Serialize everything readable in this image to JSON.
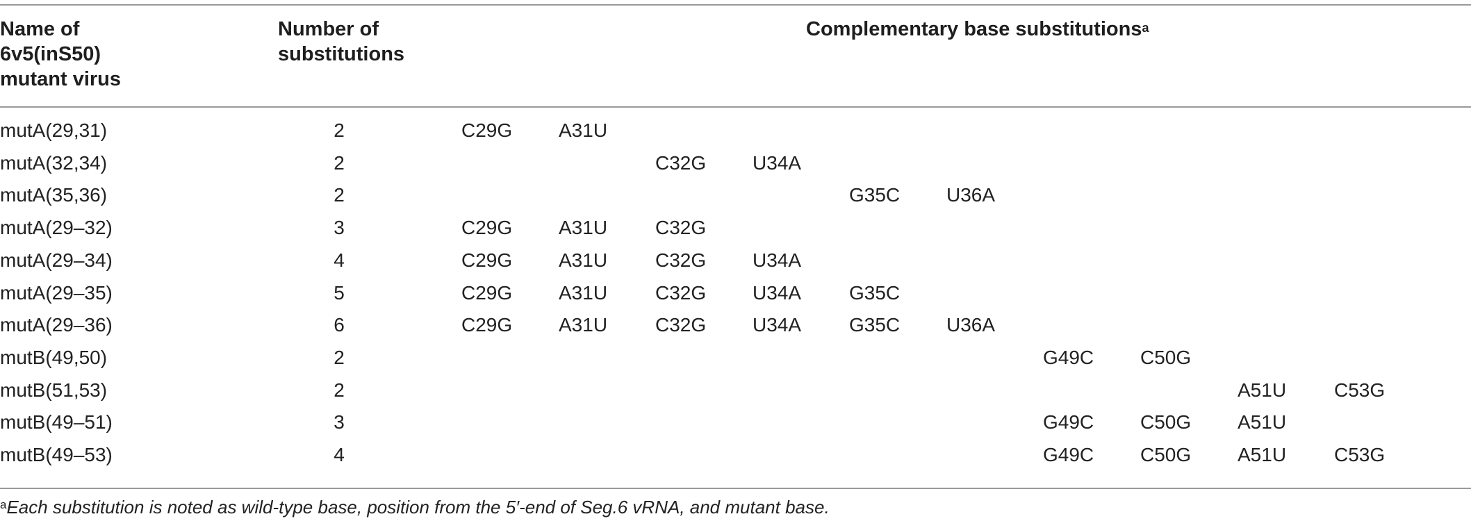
{
  "table": {
    "headers": {
      "name_lines": [
        "Name of",
        "6v5(inS50)",
        "mutant virus"
      ],
      "count_lines": [
        "Number of",
        "substitutions"
      ],
      "substitutions": "Complementary base substitutions",
      "substitutions_marker": "a"
    },
    "rows": [
      {
        "name": "mutA(29,31)",
        "count": "2",
        "subs": [
          "C29G",
          "A31U",
          "",
          "",
          "",
          "",
          "",
          "",
          "",
          ""
        ]
      },
      {
        "name": "mutA(32,34)",
        "count": "2",
        "subs": [
          "",
          "",
          "C32G",
          "U34A",
          "",
          "",
          "",
          "",
          "",
          ""
        ]
      },
      {
        "name": "mutA(35,36)",
        "count": "2",
        "subs": [
          "",
          "",
          "",
          "",
          "G35C",
          "U36A",
          "",
          "",
          "",
          ""
        ]
      },
      {
        "name": "mutA(29–32)",
        "count": "3",
        "subs": [
          "C29G",
          "A31U",
          "C32G",
          "",
          "",
          "",
          "",
          "",
          "",
          ""
        ]
      },
      {
        "name": "mutA(29–34)",
        "count": "4",
        "subs": [
          "C29G",
          "A31U",
          "C32G",
          "U34A",
          "",
          "",
          "",
          "",
          "",
          ""
        ]
      },
      {
        "name": "mutA(29–35)",
        "count": "5",
        "subs": [
          "C29G",
          "A31U",
          "C32G",
          "U34A",
          "G35C",
          "",
          "",
          "",
          "",
          ""
        ]
      },
      {
        "name": "mutA(29–36)",
        "count": "6",
        "subs": [
          "C29G",
          "A31U",
          "C32G",
          "U34A",
          "G35C",
          "U36A",
          "",
          "",
          "",
          ""
        ]
      },
      {
        "name": "mutB(49,50)",
        "count": "2",
        "subs": [
          "",
          "",
          "",
          "",
          "",
          "",
          "G49C",
          "C50G",
          "",
          ""
        ]
      },
      {
        "name": "mutB(51,53)",
        "count": "2",
        "subs": [
          "",
          "",
          "",
          "",
          "",
          "",
          "",
          "",
          "A51U",
          "C53G"
        ]
      },
      {
        "name": "mutB(49–51)",
        "count": "3",
        "subs": [
          "",
          "",
          "",
          "",
          "",
          "",
          "G49C",
          "C50G",
          "A51U",
          ""
        ]
      },
      {
        "name": "mutB(49–53)",
        "count": "4",
        "subs": [
          "",
          "",
          "",
          "",
          "",
          "",
          "G49C",
          "C50G",
          "A51U",
          "C53G"
        ]
      }
    ]
  },
  "footnote": {
    "marker": "a",
    "text": "Each substitution is noted as wild-type base, position from the 5′-end of Seg.6 vRNA, and mutant base."
  }
}
